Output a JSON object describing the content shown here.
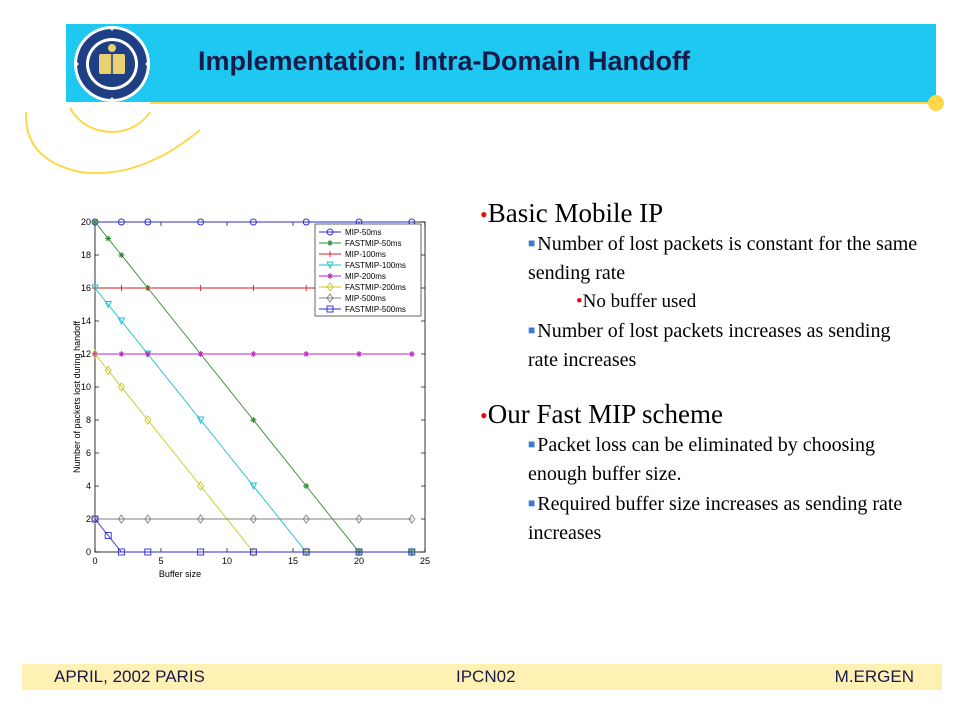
{
  "slide": {
    "title": "Implementation: Intra-Domain Handoff",
    "accent_color": "#1ec8f0",
    "decor_color": "#ffd84a"
  },
  "logo": {
    "icon": "university-seal-icon",
    "ring_text": "THE UNIVERSITY OF CALIFORNIA",
    "year": "1868"
  },
  "bullets": {
    "basic": {
      "heading": "Basic Mobile IP",
      "item1": "Number of lost packets is constant for the same sending rate",
      "sub1": "No buffer used",
      "item2": "Number of lost packets increases as sending rate increases"
    },
    "fast": {
      "heading": "Our Fast MIP scheme",
      "item1": "Packet loss can be eliminated by choosing enough buffer size.",
      "item2": "Required buffer size increases as sending rate increases"
    }
  },
  "footer": {
    "left": "APRIL, 2002 PARIS",
    "center": "IPCN02",
    "right": "M.ERGEN",
    "background": "#fff0b4"
  },
  "chart_data": {
    "type": "line",
    "xlabel": "Buffer size",
    "ylabel": "Number of packets lost during handoff",
    "xlim": [
      0,
      25
    ],
    "ylim": [
      0,
      20
    ],
    "xticks": [
      0,
      5,
      10,
      15,
      20,
      25
    ],
    "yticks": [
      0,
      2,
      4,
      6,
      8,
      10,
      12,
      14,
      16,
      18,
      20
    ],
    "grid": false,
    "legend_position": "top-right",
    "series": [
      {
        "name": "MIP-50ms",
        "color": "#2b2bd0",
        "marker": "circle",
        "x": [
          0,
          2,
          4,
          8,
          12,
          16,
          20,
          24
        ],
        "y": [
          20,
          20,
          20,
          20,
          20,
          20,
          20,
          20
        ]
      },
      {
        "name": "FASTMIP-50ms",
        "color": "#2e8b2e",
        "marker": "star",
        "x": [
          0,
          1,
          2,
          4,
          8,
          12,
          16,
          20,
          24
        ],
        "y": [
          20,
          19,
          18,
          16,
          12,
          8,
          4,
          0,
          0
        ]
      },
      {
        "name": "MIP-100ms",
        "color": "#d02020",
        "marker": "plus",
        "x": [
          0,
          2,
          4,
          8,
          12,
          16,
          20,
          24
        ],
        "y": [
          16,
          16,
          16,
          16,
          16,
          16,
          16,
          16
        ]
      },
      {
        "name": "FASTMIP-100ms",
        "color": "#18c0d0",
        "marker": "triangle-down",
        "x": [
          0,
          1,
          2,
          4,
          8,
          12,
          16,
          20,
          24
        ],
        "y": [
          16,
          15,
          14,
          12,
          8,
          4,
          0,
          0,
          0
        ]
      },
      {
        "name": "MIP-200ms",
        "color": "#c020c0",
        "marker": "star",
        "x": [
          0,
          2,
          4,
          8,
          12,
          16,
          20,
          24
        ],
        "y": [
          12,
          12,
          12,
          12,
          12,
          12,
          12,
          12
        ]
      },
      {
        "name": "FASTMIP-200ms",
        "color": "#c8c820",
        "marker": "diamond",
        "x": [
          0,
          1,
          2,
          4,
          8,
          12,
          16,
          20,
          24
        ],
        "y": [
          12,
          11,
          10,
          8,
          4,
          0,
          0,
          0,
          0
        ]
      },
      {
        "name": "MIP-500ms",
        "color": "#808080",
        "marker": "diamond",
        "x": [
          0,
          2,
          4,
          8,
          12,
          16,
          20,
          24
        ],
        "y": [
          2,
          2,
          2,
          2,
          2,
          2,
          2,
          2
        ]
      },
      {
        "name": "FASTMIP-500ms",
        "color": "#2b2bd0",
        "marker": "square",
        "x": [
          0,
          1,
          2,
          4,
          8,
          12,
          16,
          20,
          24
        ],
        "y": [
          2,
          1,
          0,
          0,
          0,
          0,
          0,
          0,
          0
        ]
      }
    ]
  }
}
